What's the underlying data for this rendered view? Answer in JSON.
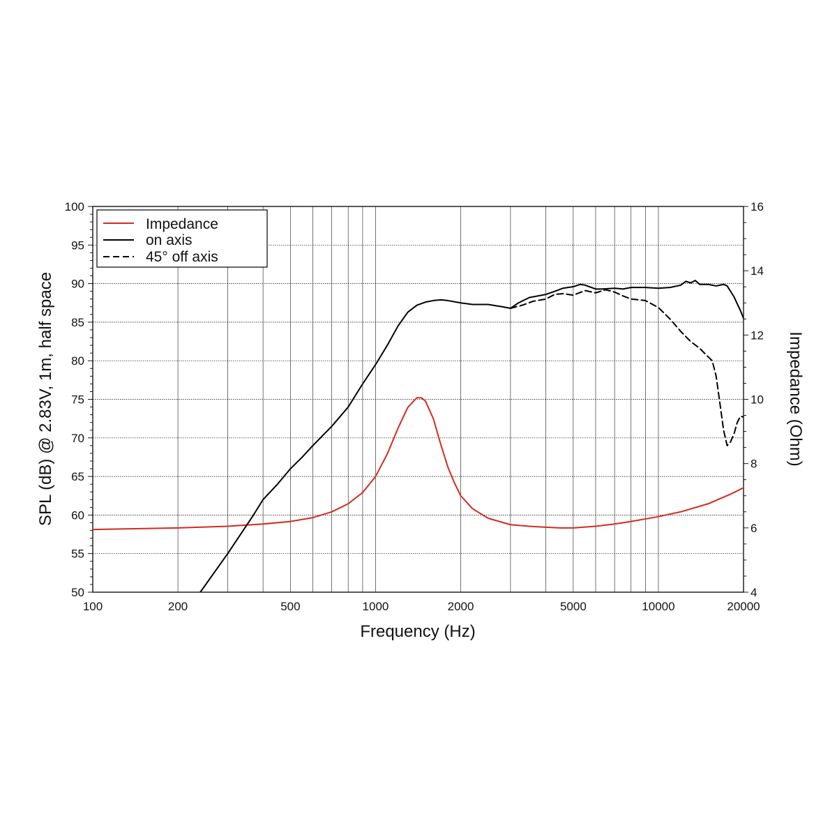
{
  "chart_data": {
    "type": "line",
    "xlabel": "Frequency (Hz)",
    "ylabel": "SPL (dB) @ 2.83V, 1m, half space",
    "y2label": "Impedance (Ohm)",
    "x_scale": "log",
    "xlim": [
      100,
      20000
    ],
    "ylim": [
      50,
      100
    ],
    "y2lim": [
      4,
      16
    ],
    "grid": true,
    "legend_position": "top-left",
    "x_ticks": [
      "100",
      "200",
      "500",
      "1000",
      "2000",
      "5000",
      "10000",
      "20000"
    ],
    "y_ticks": [
      "50",
      "55",
      "60",
      "65",
      "70",
      "75",
      "80",
      "85",
      "90",
      "95",
      "100"
    ],
    "y2_ticks": [
      "4",
      "6",
      "8",
      "10",
      "12",
      "14",
      "16"
    ],
    "colors": {
      "impedance": "#d42a20",
      "on_axis": "#000000",
      "off_axis": "#000000"
    },
    "series": [
      {
        "name": "Impedance",
        "axis": "right",
        "color": "#d42a20",
        "style": "solid",
        "x": [
          100,
          200,
          300,
          400,
          500,
          600,
          700,
          800,
          900,
          1000,
          1100,
          1200,
          1300,
          1400,
          1450,
          1500,
          1600,
          1700,
          1800,
          1900,
          2000,
          2200,
          2500,
          3000,
          3500,
          4000,
          4500,
          5000,
          6000,
          7000,
          8000,
          10000,
          12000,
          15000,
          18000,
          20000
        ],
        "y": [
          5.95,
          6.0,
          6.05,
          6.12,
          6.2,
          6.32,
          6.5,
          6.75,
          7.1,
          7.6,
          8.3,
          9.1,
          9.75,
          10.05,
          10.05,
          9.95,
          9.4,
          8.6,
          7.9,
          7.4,
          7.0,
          6.6,
          6.3,
          6.1,
          6.05,
          6.02,
          6.0,
          6.0,
          6.05,
          6.12,
          6.2,
          6.35,
          6.5,
          6.75,
          7.05,
          7.25
        ]
      },
      {
        "name": "on axis",
        "axis": "left",
        "color": "#000000",
        "style": "solid",
        "x": [
          240,
          300,
          370,
          400,
          450,
          500,
          550,
          600,
          700,
          800,
          900,
          1000,
          1100,
          1200,
          1300,
          1400,
          1500,
          1600,
          1700,
          1800,
          2000,
          2200,
          2500,
          2800,
          3000,
          3200,
          3500,
          4000,
          4300,
          4600,
          5000,
          5300,
          5500,
          6000,
          6300,
          7000,
          7500,
          8000,
          9000,
          10000,
          11000,
          12000,
          12500,
          13000,
          13500,
          14000,
          15000,
          16000,
          17000,
          17500,
          18500,
          19500,
          20000
        ],
        "y": [
          50,
          55,
          60,
          62,
          64,
          66,
          67.5,
          69,
          71.5,
          74,
          77,
          79.5,
          82,
          84.5,
          86.3,
          87.2,
          87.6,
          87.8,
          87.9,
          87.8,
          87.5,
          87.3,
          87.3,
          87.0,
          86.8,
          87.5,
          88.2,
          88.6,
          89.0,
          89.4,
          89.6,
          89.9,
          89.8,
          89.3,
          89.3,
          89.4,
          89.3,
          89.5,
          89.5,
          89.4,
          89.5,
          89.8,
          90.3,
          90.1,
          90.4,
          89.9,
          89.9,
          89.7,
          89.9,
          89.7,
          88.3,
          86.5,
          85.5
        ]
      },
      {
        "name": "45° off axis",
        "axis": "left",
        "color": "#000000",
        "style": "dashed",
        "x": [
          3000,
          3300,
          3600,
          4000,
          4300,
          4600,
          5000,
          5500,
          6000,
          6500,
          7000,
          7500,
          8000,
          9000,
          10000,
          11000,
          12000,
          13000,
          14000,
          15000,
          15500,
          16000,
          16500,
          17000,
          17500,
          18000,
          18500,
          19000,
          19500,
          20000
        ],
        "y": [
          86.8,
          87.2,
          87.7,
          88.0,
          88.6,
          88.7,
          88.5,
          89.1,
          88.8,
          89.2,
          88.9,
          88.4,
          88.0,
          87.8,
          86.9,
          85.4,
          83.8,
          82.5,
          81.6,
          80.5,
          80.0,
          78.0,
          74.5,
          71.0,
          69.0,
          69.5,
          70.5,
          72.0,
          72.8,
          72.7
        ]
      }
    ]
  }
}
